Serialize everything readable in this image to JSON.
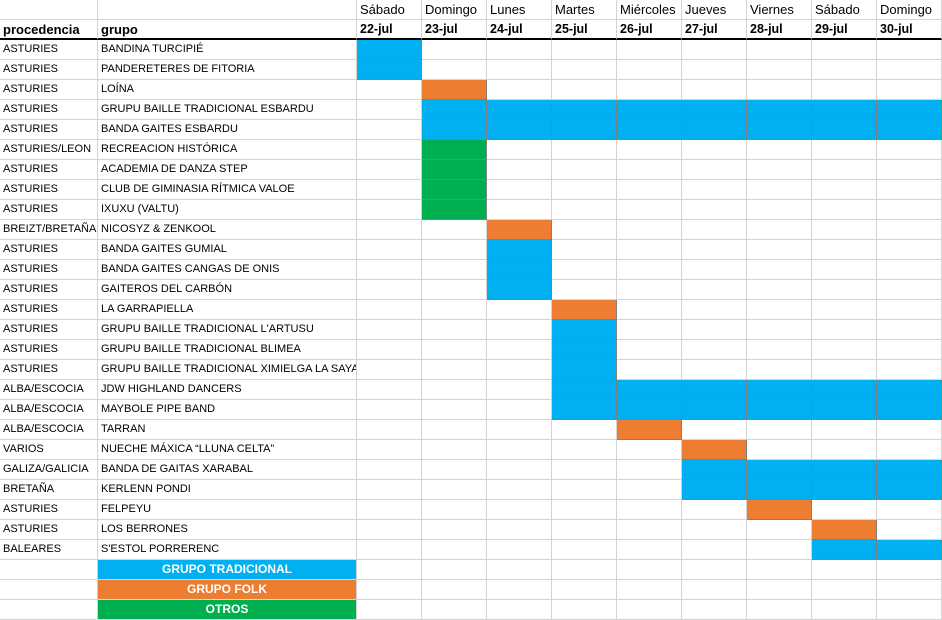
{
  "headers": {
    "procedencia": "procedencia",
    "grupo": "grupo"
  },
  "days": [
    {
      "day": "Sábado",
      "date": "22-jul"
    },
    {
      "day": "Domingo",
      "date": "23-jul"
    },
    {
      "day": "Lunes",
      "date": "24-jul"
    },
    {
      "day": "Martes",
      "date": "25-jul"
    },
    {
      "day": "Miércoles",
      "date": "26-jul"
    },
    {
      "day": "Jueves",
      "date": "27-jul"
    },
    {
      "day": "Viernes",
      "date": "28-jul"
    },
    {
      "day": "Sábado",
      "date": "29-jul"
    },
    {
      "day": "Domingo",
      "date": "30-jul"
    }
  ],
  "colors": {
    "tradicional": "#00b0f0",
    "folk": "#ed7d31",
    "otros": "#00b050"
  },
  "rows": [
    {
      "procedencia": "ASTURIES",
      "grupo": "BANDINA TURCIPIÉ",
      "days": [
        0
      ],
      "type": "tradicional"
    },
    {
      "procedencia": "ASTURIES",
      "grupo": "PANDERETERES DE FITORIA",
      "days": [
        0
      ],
      "type": "tradicional"
    },
    {
      "procedencia": "ASTURIES",
      "grupo": "LOÍNA",
      "days": [
        1
      ],
      "type": "folk"
    },
    {
      "procedencia": "ASTURIES",
      "grupo": "GRUPU BAILLE TRADICIONAL ESBARDU",
      "days": [
        1,
        2,
        3,
        4,
        5,
        6,
        7,
        8
      ],
      "type": "tradicional"
    },
    {
      "procedencia": "ASTURIES",
      "grupo": "BANDA GAITES ESBARDU",
      "days": [
        1,
        2,
        3,
        4,
        5,
        6,
        7,
        8
      ],
      "type": "tradicional"
    },
    {
      "procedencia": "ASTURIES/LEON",
      "grupo": "RECREACION HISTÓRICA",
      "days": [
        1
      ],
      "type": "otros"
    },
    {
      "procedencia": "ASTURIES",
      "grupo": "ACADEMIA DE DANZA STEP",
      "days": [
        1
      ],
      "type": "otros"
    },
    {
      "procedencia": "ASTURIES",
      "grupo": "CLUB DE GIMINASIA RÍTMICA VALOE",
      "days": [
        1
      ],
      "type": "otros"
    },
    {
      "procedencia": "ASTURIES",
      "grupo": "IXUXU (VALTU)",
      "days": [
        1
      ],
      "type": "otros"
    },
    {
      "procedencia": "BREIZT/BRETAÑA",
      "grupo": "NICOSYZ & ZENKOOL",
      "days": [
        2
      ],
      "type": "folk"
    },
    {
      "procedencia": "ASTURIES",
      "grupo": "BANDA GAITES GUMIAL",
      "days": [
        2
      ],
      "type": "tradicional"
    },
    {
      "procedencia": "ASTURIES",
      "grupo": "BANDA GAITES CANGAS DE ONIS",
      "days": [
        2
      ],
      "type": "tradicional"
    },
    {
      "procedencia": "ASTURIES",
      "grupo": "GAITEROS DEL CARBÓN",
      "days": [
        2
      ],
      "type": "tradicional"
    },
    {
      "procedencia": "ASTURIES",
      "grupo": "LA GARRAPIELLA",
      "days": [
        3
      ],
      "type": "folk"
    },
    {
      "procedencia": "ASTURIES",
      "grupo": "GRUPU BAILLE TRADICIONAL L'ARTUSU",
      "days": [
        3
      ],
      "type": "tradicional"
    },
    {
      "procedencia": "ASTURIES",
      "grupo": "GRUPU BAILLE TRADICIONAL BLIMEA",
      "days": [
        3
      ],
      "type": "tradicional"
    },
    {
      "procedencia": "ASTURIES",
      "grupo": "GRUPU BAILLE TRADICIONAL XIMIELGA LA SAYA",
      "days": [
        3
      ],
      "type": "tradicional"
    },
    {
      "procedencia": "ALBA/ESCOCIA",
      "grupo": "JDW HIGHLAND DANCERS",
      "days": [
        3,
        4,
        5,
        6,
        7,
        8
      ],
      "type": "tradicional"
    },
    {
      "procedencia": "ALBA/ESCOCIA",
      "grupo": "MAYBOLE PIPE BAND",
      "days": [
        3,
        4,
        5,
        6,
        7,
        8
      ],
      "type": "tradicional"
    },
    {
      "procedencia": "ALBA/ESCOCIA",
      "grupo": "TARRAN",
      "days": [
        4
      ],
      "type": "folk"
    },
    {
      "procedencia": "VARIOS",
      "grupo": "NUECHE MÁXICA “LLUNA CELTA”",
      "days": [
        5
      ],
      "type": "folk"
    },
    {
      "procedencia": "GALIZA/GALICIA",
      "grupo": "BANDA DE GAITAS XARABAL",
      "days": [
        5,
        6,
        7,
        8
      ],
      "type": "tradicional"
    },
    {
      "procedencia": "BRETAÑA",
      "grupo": "KERLENN PONDI",
      "days": [
        5,
        6,
        7,
        8
      ],
      "type": "tradicional"
    },
    {
      "procedencia": "ASTURIES",
      "grupo": "FELPEYU",
      "days": [
        6
      ],
      "type": "folk"
    },
    {
      "procedencia": "ASTURIES",
      "grupo": "LOS BERRONES",
      "days": [
        7
      ],
      "type": "folk"
    },
    {
      "procedencia": "BALEARES",
      "grupo": "S'ESTOL PORRERENC",
      "days": [
        7,
        8
      ],
      "type": "tradicional"
    }
  ],
  "legend": [
    {
      "label": "GRUPO TRADICIONAL",
      "type": "tradicional"
    },
    {
      "label": "GRUPO FOLK",
      "type": "folk"
    },
    {
      "label": "OTROS",
      "type": "otros"
    }
  ]
}
